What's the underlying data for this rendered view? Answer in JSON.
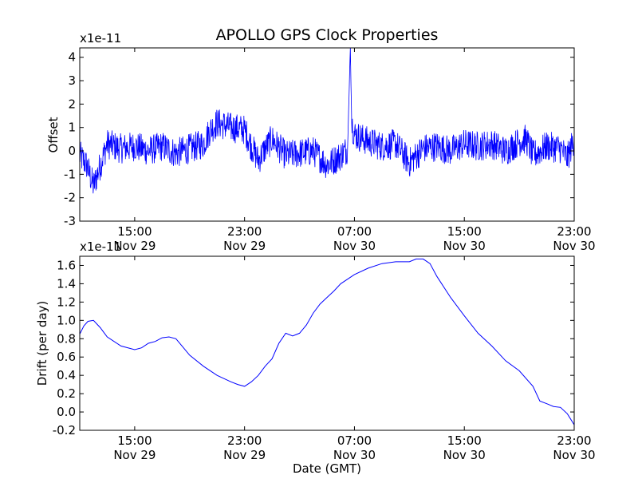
{
  "figure": {
    "title": "APOLLO GPS Clock Properties",
    "line_color": "#0000ff"
  },
  "chart_data": [
    {
      "type": "line",
      "title": "APOLLO GPS Clock Properties",
      "ylabel": "Offset",
      "xlabel": "",
      "y_multiplier_label": "x1e-11",
      "x_unit": "hours since Nov 29 11:00 GMT",
      "xlim": [
        0,
        36
      ],
      "ylim": [
        -3,
        4.4
      ],
      "yticks": [
        "-3",
        "-2",
        "-1",
        "0",
        "1",
        "2",
        "3",
        "4"
      ],
      "xticks": [
        {
          "time": "15:00",
          "date": "Nov 29"
        },
        {
          "time": "23:00",
          "date": "Nov 29"
        },
        {
          "time": "07:00",
          "date": "Nov 30"
        },
        {
          "time": "15:00",
          "date": "Nov 30"
        },
        {
          "time": "23:00",
          "date": "Nov 30"
        }
      ],
      "xtick_values": [
        4,
        12,
        20,
        28,
        36
      ],
      "series": [
        {
          "name": "",
          "x": [
            0,
            0.5,
            1,
            1.5,
            2,
            3,
            4,
            5,
            6,
            7,
            8,
            9,
            9.5,
            10,
            11,
            12,
            12.5,
            13,
            13.5,
            14,
            15,
            16,
            17,
            18,
            19,
            19.5,
            19.7,
            19.8,
            20,
            21,
            22,
            23,
            24,
            25,
            26,
            27,
            28,
            29,
            30,
            31,
            32,
            32.5,
            33,
            34,
            35,
            35.5,
            36
          ],
          "y": [
            -0.2,
            -0.6,
            -1.5,
            -0.6,
            0.3,
            0.1,
            0.2,
            0.0,
            0.2,
            -0.1,
            0.1,
            0.3,
            0.9,
            1.2,
            1.0,
            0.9,
            0.2,
            -0.4,
            0.1,
            0.5,
            -0.2,
            -0.1,
            0.0,
            -0.6,
            -0.2,
            0.1,
            4.4,
            1.2,
            0.7,
            0.4,
            0.2,
            0.3,
            -0.5,
            0.1,
            0.2,
            0.0,
            0.3,
            0.2,
            0.3,
            0.0,
            0.4,
            0.5,
            -0.2,
            0.2,
            0.1,
            -0.3,
            0.5
          ]
        }
      ]
    },
    {
      "type": "line",
      "title": "",
      "ylabel": "Drift (per day)",
      "xlabel": "Date (GMT)",
      "y_multiplier_label": "x1e-11",
      "x_unit": "hours since Nov 29 11:00 GMT",
      "xlim": [
        0,
        36
      ],
      "ylim": [
        -0.2,
        1.7
      ],
      "yticks": [
        "-0.2",
        "0.0",
        "0.2",
        "0.4",
        "0.6",
        "0.8",
        "1.0",
        "1.2",
        "1.4",
        "1.6"
      ],
      "xticks": [
        {
          "time": "15:00",
          "date": "Nov 29"
        },
        {
          "time": "23:00",
          "date": "Nov 29"
        },
        {
          "time": "07:00",
          "date": "Nov 30"
        },
        {
          "time": "15:00",
          "date": "Nov 30"
        },
        {
          "time": "23:00",
          "date": "Nov 30"
        }
      ],
      "xtick_values": [
        4,
        12,
        20,
        28,
        36
      ],
      "series": [
        {
          "name": "",
          "x": [
            0,
            0.3,
            0.6,
            1.0,
            1.5,
            2.0,
            3.0,
            4.0,
            4.5,
            5.0,
            5.5,
            6.0,
            6.5,
            7.0,
            7.5,
            8.0,
            9.0,
            10.0,
            11.0,
            11.5,
            12.0,
            12.5,
            13.0,
            13.5,
            14.0,
            14.5,
            15.0,
            15.5,
            16.0,
            16.5,
            17.0,
            17.5,
            18.0,
            18.5,
            19.0,
            19.5,
            20.0,
            21.0,
            22.0,
            23.0,
            24.0,
            24.5,
            25.0,
            25.5,
            26.0,
            27.0,
            28.0,
            29.0,
            30.0,
            31.0,
            32.0,
            33.0,
            33.5,
            34.0,
            34.5,
            35.0,
            35.5,
            36.0
          ],
          "y": [
            0.85,
            0.94,
            0.99,
            1.0,
            0.92,
            0.82,
            0.72,
            0.68,
            0.7,
            0.75,
            0.77,
            0.81,
            0.82,
            0.8,
            0.71,
            0.62,
            0.5,
            0.4,
            0.33,
            0.3,
            0.28,
            0.33,
            0.4,
            0.5,
            0.58,
            0.75,
            0.86,
            0.83,
            0.86,
            0.95,
            1.08,
            1.18,
            1.25,
            1.32,
            1.4,
            1.45,
            1.5,
            1.57,
            1.62,
            1.64,
            1.64,
            1.67,
            1.67,
            1.62,
            1.48,
            1.25,
            1.05,
            0.86,
            0.72,
            0.56,
            0.45,
            0.28,
            0.12,
            0.09,
            0.06,
            0.05,
            -0.02,
            -0.14
          ]
        }
      ]
    }
  ]
}
